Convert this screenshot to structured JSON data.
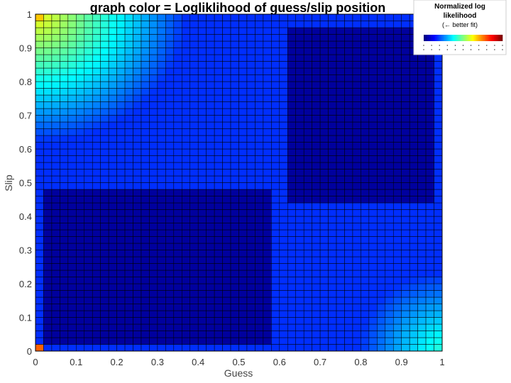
{
  "chart_data": {
    "type": "heatmap",
    "title": "graph color = Logliklihood of guess/slip position",
    "xlabel": "Guess",
    "ylabel": "Slip",
    "xlim": [
      0,
      1
    ],
    "ylim": [
      0,
      1
    ],
    "x_ticks": [
      "0",
      "0.1",
      "0.2",
      "0.3",
      "0.4",
      "0.5",
      "0.6",
      "0.7",
      "0.8",
      "0.9",
      "1"
    ],
    "y_ticks": [
      "0",
      "0.1",
      "0.2",
      "0.3",
      "0.4",
      "0.5",
      "0.6",
      "0.7",
      "0.8",
      "0.9",
      "1"
    ],
    "grid_resolution": 50,
    "colormap": "jet",
    "value_range": [
      0,
      1
    ],
    "grid": true,
    "regions": [
      {
        "desc": "dark valley low guess mid slip",
        "guess_range": [
          0.02,
          0.58
        ],
        "slip_range": [
          0.02,
          0.48
        ],
        "value": 0.03
      },
      {
        "desc": "dark valley high guess high slip",
        "guess_range": [
          0.62,
          0.98
        ],
        "slip_range": [
          0.45,
          0.95
        ],
        "value": 0.03
      },
      {
        "desc": "peak corner",
        "guess": 0.0,
        "slip": 1.0,
        "value": 0.68
      },
      {
        "desc": "peak corner",
        "guess": 1.0,
        "slip": 0.0,
        "value": 0.42
      },
      {
        "desc": "origin corner",
        "guess": 0.0,
        "slip": 0.0,
        "value": 0.78
      }
    ],
    "legend": {
      "title_line1": "Normalized log",
      "title_line2": "likelihood",
      "subtitle": "(← better fit)",
      "placement": "top-right"
    }
  },
  "colors": {
    "frame": "#000000",
    "grid_line": "#000000",
    "background": "#ffffff"
  }
}
